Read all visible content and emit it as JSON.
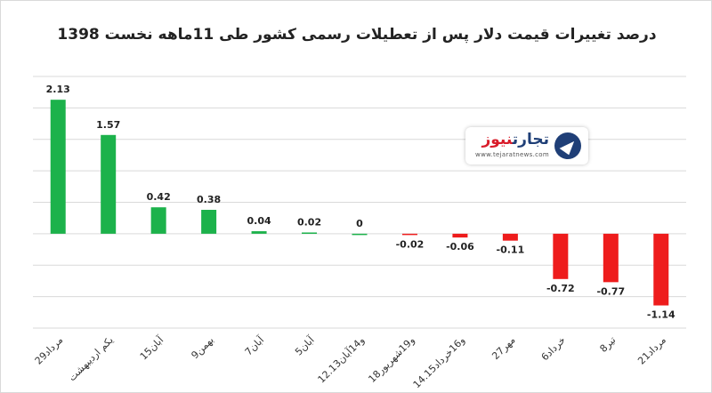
{
  "chart_data": {
    "type": "bar",
    "title": "درصد تغییرات قیمت دلار پس از تعطیلات رسمی کشور طی 11ماهه نخست 1398",
    "categories": [
      "29مرداد",
      "یکم اردیبهشت",
      "15آبان",
      "9بهمن",
      "7آبان",
      "5آبان",
      "12.13و14آبان",
      "18و19شهریور",
      "14.15و16خرداد",
      "27مهر",
      "6خرداد",
      "8تیر",
      "21مرداد"
    ],
    "values": [
      2.13,
      1.57,
      0.42,
      0.38,
      0.04,
      0.02,
      0,
      -0.02,
      -0.06,
      -0.11,
      -0.72,
      -0.77,
      -1.14
    ],
    "data_labels": [
      "2.13",
      "1.57",
      "0.42",
      "0.38",
      "0.04",
      "0.02",
      "0",
      "-0.02",
      "-0.06",
      "-0.11",
      "-0.72",
      "-0.77",
      "-1.14"
    ],
    "ylim": [
      -1.5,
      2.5
    ],
    "grid": true,
    "colors": {
      "positive": "#1cb24b",
      "negative": "#ee1c1c",
      "grid": "#d9d9d9"
    }
  },
  "logo": {
    "name_part1": "تجارت",
    "name_part2": "نیوز",
    "url": "www.tejaratnews.com",
    "icon": "arrow-compass-icon"
  }
}
